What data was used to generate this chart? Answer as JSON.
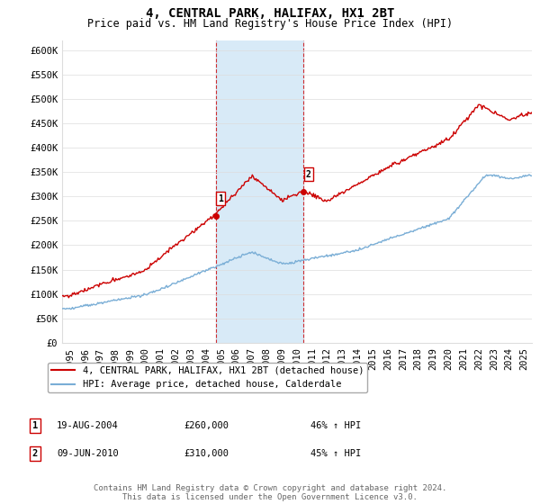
{
  "title": "4, CENTRAL PARK, HALIFAX, HX1 2BT",
  "subtitle": "Price paid vs. HM Land Registry's House Price Index (HPI)",
  "ylim": [
    0,
    620000
  ],
  "xlim_start": 1994.5,
  "xlim_end": 2025.5,
  "yticks": [
    0,
    50000,
    100000,
    150000,
    200000,
    250000,
    300000,
    350000,
    400000,
    450000,
    500000,
    550000,
    600000
  ],
  "yticklabels": [
    "£0",
    "£50K",
    "£100K",
    "£150K",
    "£200K",
    "£250K",
    "£300K",
    "£350K",
    "£400K",
    "£450K",
    "£500K",
    "£550K",
    "£600K"
  ],
  "xtick_years": [
    1995,
    1996,
    1997,
    1998,
    1999,
    2000,
    2001,
    2002,
    2003,
    2004,
    2005,
    2006,
    2007,
    2008,
    2009,
    2010,
    2011,
    2012,
    2013,
    2014,
    2015,
    2016,
    2017,
    2018,
    2019,
    2020,
    2021,
    2022,
    2023,
    2024,
    2025
  ],
  "transaction1": {
    "date": "19-AUG-2004",
    "price": 260000,
    "hpi_pct": "46% ↑ HPI",
    "x": 2004.63
  },
  "transaction2": {
    "date": "09-JUN-2010",
    "price": 310000,
    "hpi_pct": "45% ↑ HPI",
    "x": 2010.44
  },
  "legend_line1": "4, CENTRAL PARK, HALIFAX, HX1 2BT (detached house)",
  "legend_line2": "HPI: Average price, detached house, Calderdale",
  "footer": "Contains HM Land Registry data © Crown copyright and database right 2024.\nThis data is licensed under the Open Government Licence v3.0.",
  "red_color": "#cc0000",
  "blue_color": "#7aaed6",
  "shade_color": "#d8eaf7",
  "grid_color": "#dddddd",
  "background_color": "#ffffff",
  "title_fontsize": 10,
  "subtitle_fontsize": 8.5,
  "tick_fontsize": 7.5,
  "legend_fontsize": 7.5,
  "footer_fontsize": 6.5
}
